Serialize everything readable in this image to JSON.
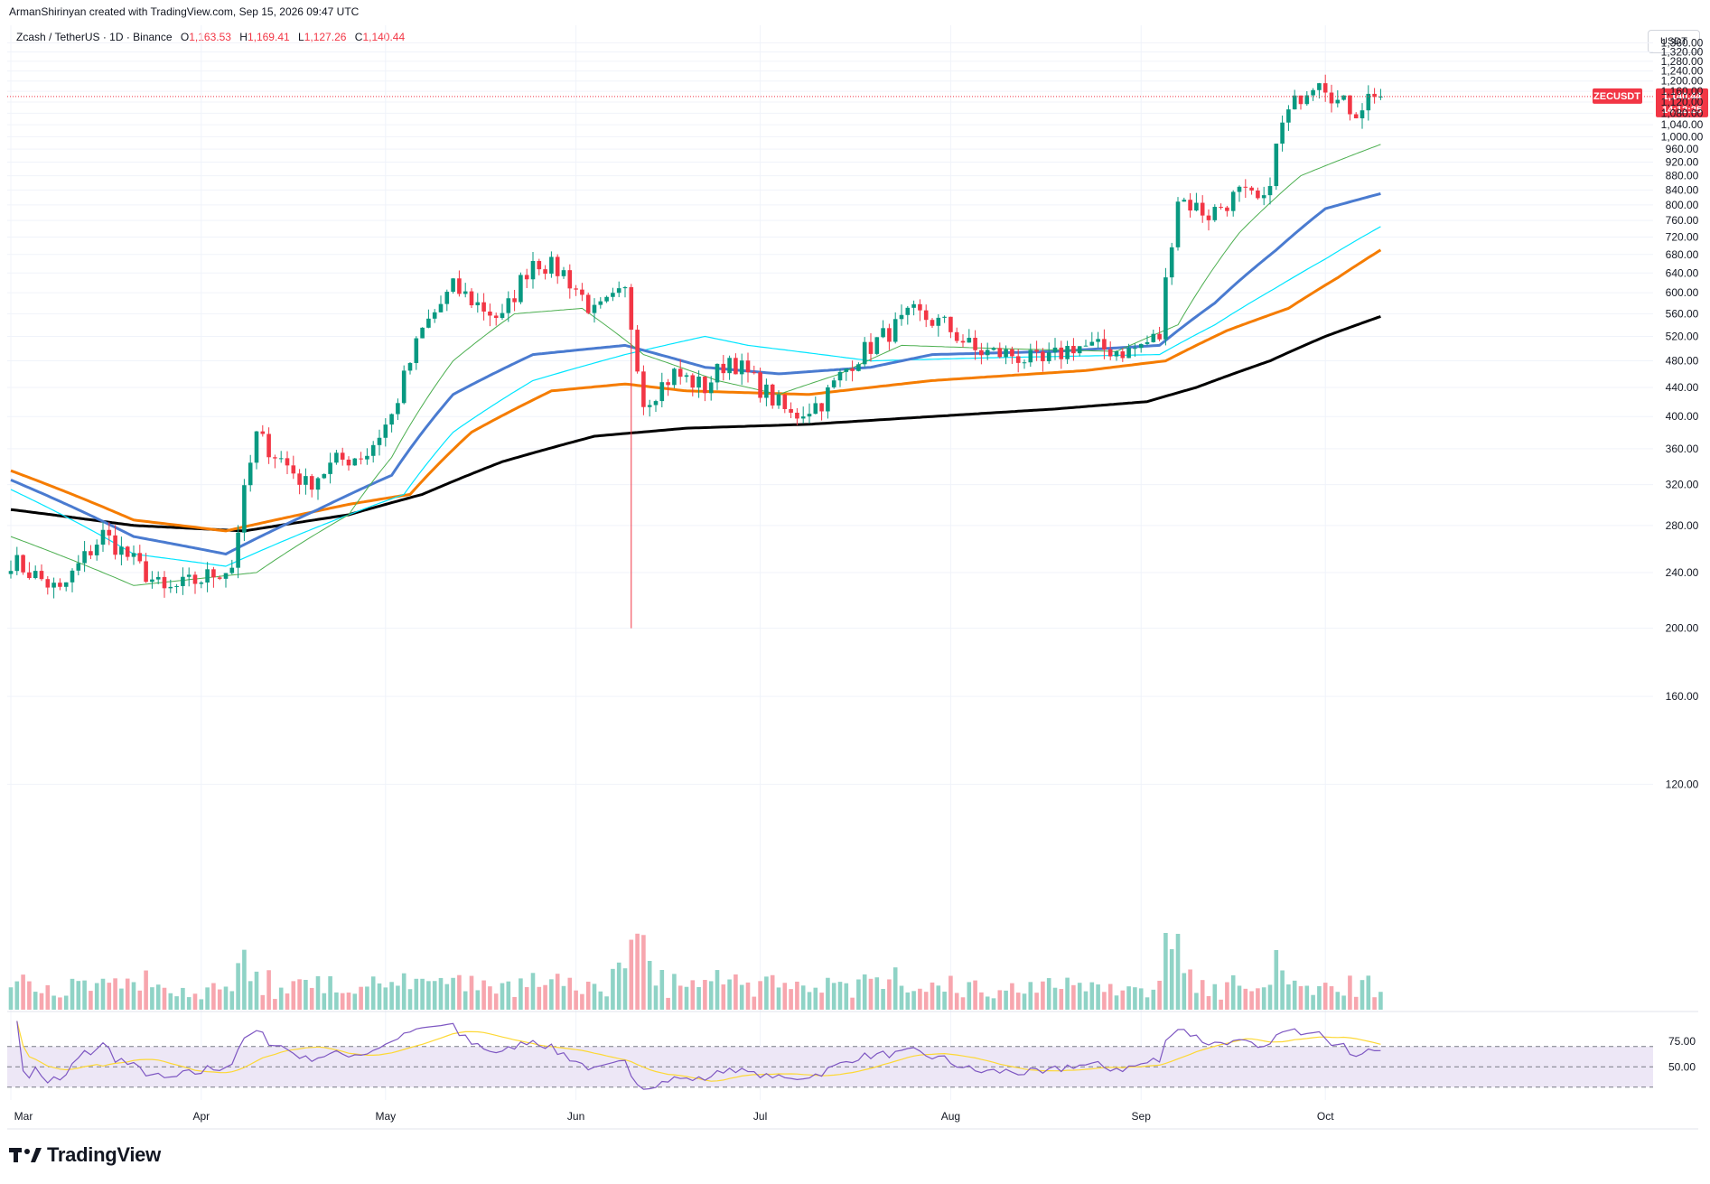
{
  "header": {
    "credit": "ArmanShirinyan created with TradingView.com, Sep 15, 2026 09:47 UTC",
    "symbol_title": "Zcash / TetherUS · 1D · Binance",
    "ohlc": {
      "o_label": "O",
      "o": "1,163.53",
      "h_label": "H",
      "h": "1,169.41",
      "l_label": "L",
      "l": "1,127.26",
      "c_label": "C",
      "c": "1,140.44"
    }
  },
  "price_axis": {
    "unit": "USDT"
  },
  "last_price": {
    "symbol": "ZECUSDT",
    "price": "1,140.44",
    "countdown": "14:12:25",
    "value": 1140.44,
    "color": "#F23645"
  },
  "brand": {
    "logo_text": "TradingView"
  },
  "colors": {
    "up": "#089981",
    "down": "#F23645",
    "vol_up": "#8fd3c6",
    "vol_down": "#f7a6ae",
    "sma_green": "#4caf50",
    "ema_blue": "#2962FF",
    "ma_cyan": "#00e5ff",
    "ma_orange": "#f57c00",
    "ma_black": "#000000",
    "rsi": "#7e57c2",
    "rsi_ma": "#fdd835",
    "rsi_band": "#ede7f6"
  },
  "chart_data": {
    "type": "candlestick",
    "x_axis": {
      "labels": [
        "Mar",
        "Apr",
        "May",
        "Jun",
        "Jul",
        "Aug",
        "Sep",
        "Oct"
      ],
      "start_date": "2026-03-01",
      "end_date": "2026-09-15"
    },
    "y_axis": {
      "range": [
        100,
        1390
      ],
      "ticks": [
        120,
        160,
        200,
        240,
        280,
        320,
        360,
        400,
        440,
        480,
        520,
        560,
        600,
        640,
        680,
        720,
        760,
        800,
        840,
        880,
        920,
        960,
        1000,
        1040,
        1080,
        1120,
        1160,
        1200,
        1240,
        1280,
        1320,
        1360
      ],
      "tick_labels": [
        "120.00",
        "160.00",
        "200.00",
        "240.00",
        "280.00",
        "320.00",
        "360.00",
        "400.00",
        "440.00",
        "480.00",
        "520.00",
        "560.00",
        "600.00",
        "640.00",
        "680.00",
        "720.00",
        "760.00",
        "800.00",
        "840.00",
        "880.00",
        "920.00",
        "960.00",
        "1,000.00",
        "1,040.00",
        "1,080.00",
        "1,120.00",
        "1,160.00",
        "1,200.00",
        "1,240.00",
        "1,280.00",
        "1,320.00",
        "1,360.00"
      ]
    },
    "anchors": [
      [
        0,
        250
      ],
      [
        8,
        225
      ],
      [
        15,
        272
      ],
      [
        25,
        225
      ],
      [
        31,
        235
      ],
      [
        36,
        245
      ],
      [
        40,
        375
      ],
      [
        48,
        320
      ],
      [
        53,
        345
      ],
      [
        58,
        355
      ],
      [
        62,
        400
      ],
      [
        67,
        530
      ],
      [
        72,
        610
      ],
      [
        77,
        570
      ],
      [
        80,
        550
      ],
      [
        85,
        670
      ],
      [
        90,
        640
      ],
      [
        95,
        560
      ],
      [
        100,
        600
      ],
      [
        103,
        420
      ],
      [
        108,
        460
      ],
      [
        113,
        440
      ],
      [
        117,
        485
      ],
      [
        122,
        440
      ],
      [
        127,
        400
      ],
      [
        132,
        420
      ],
      [
        137,
        480
      ],
      [
        142,
        520
      ],
      [
        147,
        560
      ],
      [
        152,
        540
      ],
      [
        157,
        495
      ],
      [
        163,
        490
      ],
      [
        168,
        475
      ],
      [
        173,
        505
      ],
      [
        177,
        500
      ],
      [
        182,
        495
      ],
      [
        187,
        520
      ],
      [
        190,
        820
      ],
      [
        195,
        775
      ],
      [
        200,
        830
      ],
      [
        204,
        800
      ],
      [
        207,
        1040
      ],
      [
        210,
        1150
      ],
      [
        213,
        1225
      ],
      [
        216,
        1120
      ],
      [
        219,
        1090
      ],
      [
        222,
        1160
      ],
      [
        223,
        1140.44
      ]
    ],
    "spike": {
      "day": 101,
      "low": 200
    },
    "ma_sma_green": [
      [
        0,
        270
      ],
      [
        20,
        230
      ],
      [
        40,
        240
      ],
      [
        55,
        290
      ],
      [
        62,
        350
      ],
      [
        72,
        480
      ],
      [
        82,
        560
      ],
      [
        93,
        570
      ],
      [
        103,
        490
      ],
      [
        115,
        450
      ],
      [
        125,
        430
      ],
      [
        135,
        460
      ],
      [
        145,
        505
      ],
      [
        160,
        500
      ],
      [
        180,
        495
      ],
      [
        190,
        540
      ],
      [
        200,
        730
      ],
      [
        210,
        880
      ],
      [
        223,
        975
      ]
    ],
    "ma_ema_blue": [
      [
        0,
        325
      ],
      [
        20,
        270
      ],
      [
        35,
        255
      ],
      [
        50,
        295
      ],
      [
        62,
        330
      ],
      [
        72,
        430
      ],
      [
        85,
        490
      ],
      [
        100,
        505
      ],
      [
        113,
        470
      ],
      [
        125,
        460
      ],
      [
        140,
        470
      ],
      [
        150,
        490
      ],
      [
        170,
        495
      ],
      [
        187,
        505
      ],
      [
        196,
        580
      ],
      [
        206,
        690
      ],
      [
        214,
        790
      ],
      [
        223,
        830
      ]
    ],
    "ma_cyan": [
      [
        0,
        315
      ],
      [
        20,
        255
      ],
      [
        35,
        245
      ],
      [
        55,
        290
      ],
      [
        64,
        310
      ],
      [
        72,
        380
      ],
      [
        85,
        450
      ],
      [
        100,
        490
      ],
      [
        113,
        520
      ],
      [
        120,
        505
      ],
      [
        140,
        480
      ],
      [
        160,
        485
      ],
      [
        187,
        490
      ],
      [
        196,
        540
      ],
      [
        206,
        610
      ],
      [
        214,
        670
      ],
      [
        223,
        745
      ]
    ],
    "ma_orange": [
      [
        0,
        335
      ],
      [
        20,
        285
      ],
      [
        35,
        275
      ],
      [
        55,
        300
      ],
      [
        65,
        310
      ],
      [
        75,
        380
      ],
      [
        88,
        435
      ],
      [
        100,
        445
      ],
      [
        110,
        435
      ],
      [
        130,
        430
      ],
      [
        150,
        450
      ],
      [
        175,
        465
      ],
      [
        188,
        480
      ],
      [
        198,
        530
      ],
      [
        208,
        570
      ],
      [
        216,
        630
      ],
      [
        223,
        690
      ]
    ],
    "ma_black": [
      [
        0,
        295
      ],
      [
        20,
        280
      ],
      [
        38,
        275
      ],
      [
        55,
        290
      ],
      [
        67,
        310
      ],
      [
        80,
        345
      ],
      [
        95,
        375
      ],
      [
        110,
        385
      ],
      [
        130,
        390
      ],
      [
        150,
        400
      ],
      [
        170,
        410
      ],
      [
        185,
        420
      ],
      [
        193,
        440
      ],
      [
        205,
        480
      ],
      [
        214,
        520
      ],
      [
        223,
        555
      ]
    ],
    "rsi": {
      "upper": 70,
      "lower": 30,
      "middle": 50,
      "tick_labels": [
        "75.00",
        "50.00"
      ],
      "tick_values": [
        75,
        50
      ]
    }
  }
}
